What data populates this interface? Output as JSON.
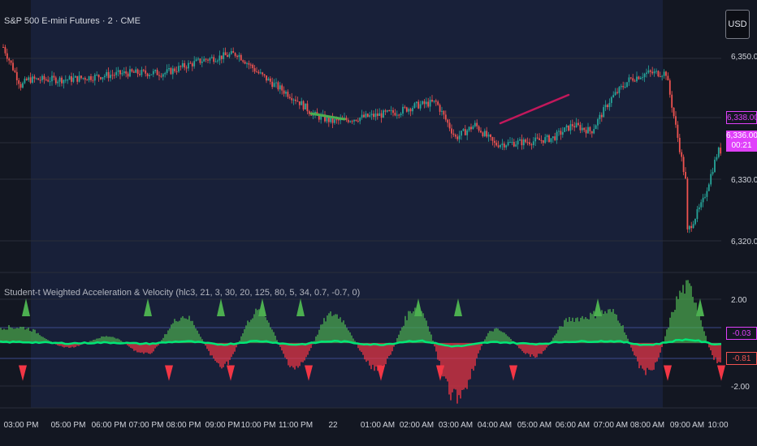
{
  "symbol_title": "S&P 500 E-mini Futures · 2 · CME",
  "currency_button": "USD",
  "indicator_title": "Student-t Weighted Acceleration & Velocity (hlc3, 21, 3, 30, 20, 125, 80, 5, 34, 0.7, -0.7, 0)",
  "price_axis": {
    "labels": [
      "6,350.00",
      "6,330.00",
      "6,320.00"
    ]
  },
  "price_badges": {
    "ref_price": "6,338.00",
    "last_price": "6,336.00",
    "countdown": "00:21"
  },
  "indicator_axis": {
    "labels": [
      "2.00",
      "-2.00"
    ]
  },
  "indicator_badges": {
    "velocity": "-0.03",
    "acceleration": "-0.81"
  },
  "time_axis": [
    "03:00 PM",
    "05:00 PM",
    "06:00 PM",
    "07:00 PM",
    "08:00 PM",
    "09:00 PM",
    "10:00 PM",
    "11:00 PM",
    "22",
    "01:00 AM",
    "02:00 AM",
    "03:00 AM",
    "04:00 AM",
    "05:00 AM",
    "06:00 AM",
    "07:00 AM",
    "08:00 AM",
    "09:00 AM",
    "10:00"
  ],
  "colors": {
    "background": "#131722",
    "session_band": "#182039",
    "up": "#26a69a",
    "down": "#ef5350",
    "accent": "#e040fb",
    "velocity": "#00e676",
    "hist_pos": "#4caf50",
    "hist_neg": "#f23645",
    "grid": "#2a2e39"
  },
  "chart_data": [
    {
      "type": "candlestick",
      "title": "S&P 500 E-mini Futures · 2 · CME",
      "y_ticks": [
        6350,
        6330,
        6320
      ],
      "x_ticks": [
        "03:00 PM",
        "05:00 PM",
        "06:00 PM",
        "07:00 PM",
        "08:00 PM",
        "09:00 PM",
        "10:00 PM",
        "11:00 PM",
        "22",
        "01:00 AM",
        "02:00 AM",
        "03:00 AM",
        "04:00 AM",
        "05:00 AM",
        "06:00 AM",
        "07:00 AM",
        "08:00 AM",
        "09:00 AM",
        "10:00"
      ],
      "close_profile": [
        [
          "02:30 PM",
          6352
        ],
        [
          "03:00 PM",
          6346
        ],
        [
          "03:15 PM",
          6347
        ],
        [
          "05:00 PM",
          6347
        ],
        [
          "06:30 PM",
          6348
        ],
        [
          "07:30 PM",
          6348
        ],
        [
          "08:00 PM",
          6349
        ],
        [
          "08:40 PM",
          6350
        ],
        [
          "09:20 PM",
          6351
        ],
        [
          "10:00 PM",
          6348
        ],
        [
          "10:40 PM",
          6346
        ],
        [
          "11:00 PM",
          6344
        ],
        [
          "11:30 PM",
          6341.5
        ],
        [
          "22",
          6340.5
        ],
        [
          "01:00 AM",
          6341.5
        ],
        [
          "01:30 AM",
          6342
        ],
        [
          "02:00 AM",
          6343
        ],
        [
          "02:30 AM",
          6343.5
        ],
        [
          "03:00 AM",
          6338
        ],
        [
          "03:30 AM",
          6340
        ],
        [
          "04:00 AM",
          6337
        ],
        [
          "05:00 AM",
          6337.5
        ],
        [
          "05:30 AM",
          6338
        ],
        [
          "06:00 AM",
          6340
        ],
        [
          "06:30 AM",
          6339
        ],
        [
          "07:00 AM",
          6344
        ],
        [
          "07:30 AM",
          6347
        ],
        [
          "08:00 AM",
          6348
        ],
        [
          "08:30 AM",
          6348
        ],
        [
          "09:00 AM",
          6330
        ],
        [
          "09:05 AM",
          6322
        ],
        [
          "09:30 AM",
          6328
        ],
        [
          "10:00",
          6336
        ]
      ],
      "last_price": 6336.0
    },
    {
      "type": "bar",
      "title": "Student-t Weighted Acceleration & Velocity (hlc3, 21, 3, 30, 20, 125, 80, 5, 34, 0.7, -0.7, 0)",
      "y_ticks": [
        2.0,
        -2.0
      ],
      "series": [
        {
          "name": "Acceleration",
          "last": -0.81
        },
        {
          "name": "Velocity",
          "last": -0.03
        }
      ],
      "acceleration_profile": [
        [
          "03:00 PM",
          0.7
        ],
        [
          "05:00 PM",
          -0.2
        ],
        [
          "06:00 PM",
          0.3
        ],
        [
          "07:00 PM",
          -0.5
        ],
        [
          "08:00 PM",
          1.2
        ],
        [
          "09:00 PM",
          -1.0
        ],
        [
          "10:00 PM",
          1.4
        ],
        [
          "11:00 PM",
          -1.1
        ],
        [
          "22",
          1.3
        ],
        [
          "01:00 AM",
          -1.2
        ],
        [
          "02:00 AM",
          1.6
        ],
        [
          "03:00 AM",
          -2.4
        ],
        [
          "04:00 AM",
          0.6
        ],
        [
          "05:00 AM",
          -0.6
        ],
        [
          "06:00 AM",
          1.1
        ],
        [
          "07:00 AM",
          1.4
        ],
        [
          "08:00 AM",
          -1.3
        ],
        [
          "09:00 AM",
          2.5
        ],
        [
          "10:00",
          -0.81
        ]
      ]
    }
  ]
}
